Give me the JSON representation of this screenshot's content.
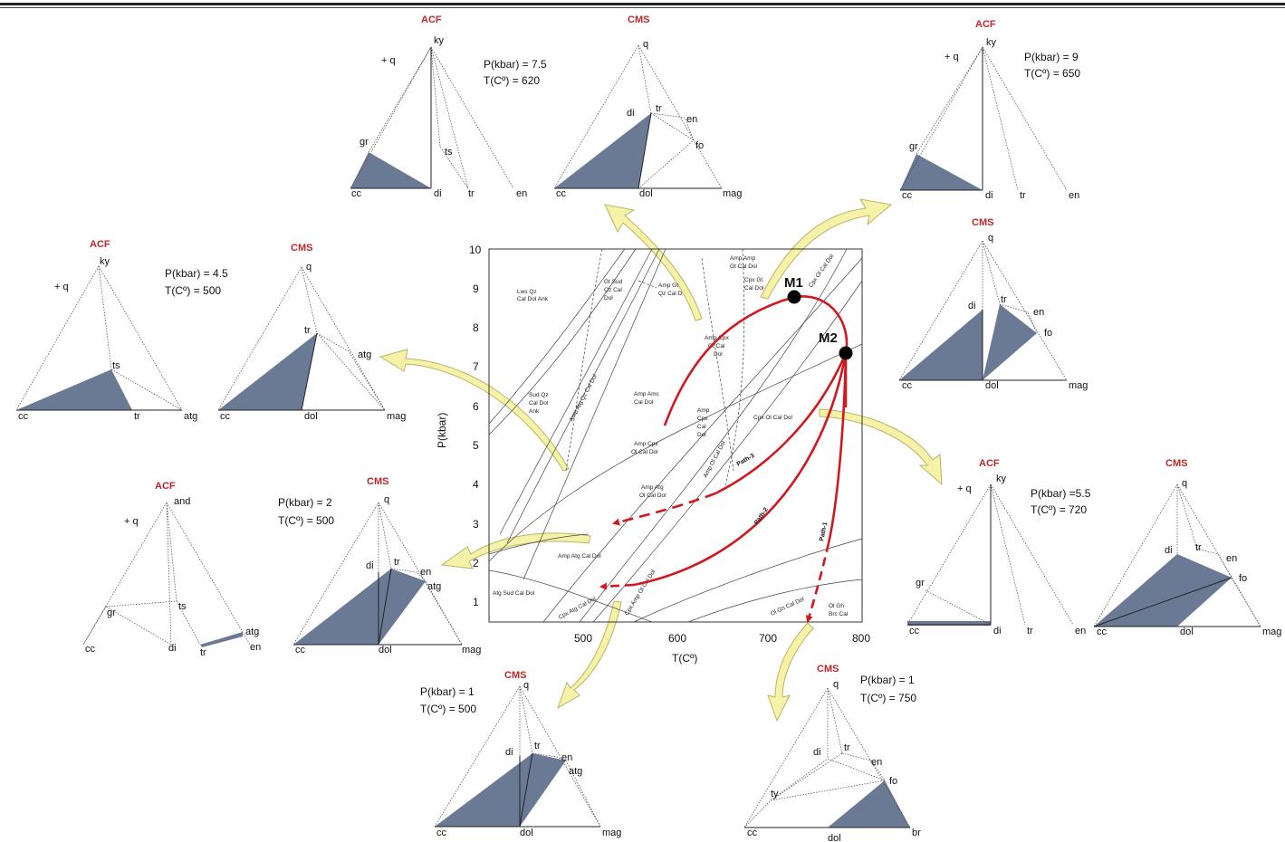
{
  "colors": {
    "fill": "#6b7a94",
    "path": "#d0181f",
    "arrow": "#f6f3a8",
    "arrow_stroke": "#b9b466",
    "title": "#c0262a"
  },
  "diagrams": {
    "top_acf": {
      "title": "ACF",
      "add": "+ q",
      "labels": {
        "ky": "ky",
        "gr": "gr",
        "ts": "ts",
        "cc": "cc",
        "di": "di",
        "tr": "tr",
        "en": "en"
      },
      "note1": "P(kbar) = 7.5",
      "note2": "T(Cº) = 620"
    },
    "top_cms": {
      "title": "CMS",
      "labels": {
        "q": "q",
        "di": "di",
        "tr": "tr",
        "en": "en",
        "fo": "fo",
        "cc": "cc",
        "dol": "dol",
        "mag": "mag"
      }
    },
    "right_acf": {
      "title": "ACF",
      "add": "+ q",
      "labels": {
        "ky": "ky",
        "gr": "gr",
        "cc": "cc",
        "di": "di",
        "tr": "tr",
        "en": "en"
      },
      "note1": "P(kbar) = 9",
      "note2": "T(Cº) = 650"
    },
    "right_cms": {
      "title": "CMS",
      "labels": {
        "q": "q",
        "di": "di",
        "tr": "tr",
        "en": "en",
        "fo": "fo",
        "cc": "cc",
        "dol": "dol",
        "mag": "mag"
      }
    },
    "left_acf": {
      "title": "ACF",
      "add": "+ q",
      "labels": {
        "ky": "ky",
        "ts": "ts",
        "cc": "cc",
        "tr": "tr",
        "atg": "atg"
      },
      "note1": "P(kbar) = 4.5",
      "note2": "T(Cº) = 500"
    },
    "left_cms": {
      "title": "CMS",
      "labels": {
        "q": "q",
        "tr": "tr",
        "atg": "atg",
        "cc": "cc",
        "dol": "dol",
        "mag": "mag"
      }
    },
    "lowleft_acf": {
      "title": "ACF",
      "add": "+ q",
      "labels": {
        "and": "and",
        "gr": "gr",
        "ts": "ts",
        "cc": "cc",
        "di": "di",
        "tr": "tr",
        "atg": "atg",
        "en": "en"
      }
    },
    "lowleft_cms": {
      "title": "CMS",
      "labels": {
        "q": "q",
        "di": "di",
        "tr": "tr",
        "en": "en",
        "atg": "atg",
        "cc": "cc",
        "dol": "dol",
        "mag": "mag"
      },
      "note1": "P(kbar) = 2",
      "note2": "T(Cº) = 500"
    },
    "midright_acf": {
      "title": "ACF",
      "add": "+ q",
      "labels": {
        "ky": "ky",
        "gr": "gr",
        "cc": "cc",
        "di": "di",
        "tr": "tr",
        "en": "en"
      },
      "note1": "P(kbar) =5.5",
      "note2": "T(Cº) = 720"
    },
    "midright_cms": {
      "title": "CMS",
      "labels": {
        "q": "q",
        "di": "di",
        "tr": "tr",
        "en": "en",
        "fo": "fo",
        "cc": "cc",
        "dol": "dol",
        "mag": "mag"
      }
    },
    "bottom_cms": {
      "title": "CMS",
      "labels": {
        "q": "q",
        "di": "di",
        "tr": "tr",
        "en": "en",
        "atg": "atg",
        "cc": "cc",
        "dol": "dol",
        "mag": "mag"
      },
      "note1": "P(kbar) = 1",
      "note2": "T(Cº) = 500"
    },
    "bottomright_cms": {
      "title": "CMS",
      "labels": {
        "q": "q",
        "di": "di",
        "tr": "tr",
        "en": "en",
        "fo": "fo",
        "ty": "ty",
        "cc": "cc",
        "dol": "dol",
        "br": "br"
      },
      "note1": "P(kbar) = 1",
      "note2": "T(Cº) = 750"
    }
  },
  "chart_data": {
    "type": "line",
    "xlabel": "T(Cº)",
    "ylabel": "P(kbar)",
    "xlim": [
      400,
      800
    ],
    "ylim": [
      0.5,
      10
    ],
    "xticks": [
      "500",
      "600",
      "700",
      "800"
    ],
    "yticks": [
      "1",
      "2",
      "3",
      "4",
      "5",
      "6",
      "7",
      "8",
      "9",
      "10"
    ],
    "points": [
      {
        "name": "M1",
        "x": 727,
        "y": 8.75
      },
      {
        "name": "M2",
        "x": 782,
        "y": 7.35
      }
    ],
    "path_labels": [
      "Path-1",
      "Path-2",
      "Path-3"
    ],
    "field_labels": {
      "lws": [
        "Lws Qz",
        "Cal Dol Ank"
      ],
      "gt_sud": [
        "Gt Sud",
        "Qz Cal",
        "Dol"
      ],
      "amp_gt_top": [
        "Amp Gt",
        "Qz Cal D"
      ],
      "amp_amp": [
        "Amp Amp",
        "Gt Cal Dol"
      ],
      "cpx_gt": [
        "Cpx Gt",
        "Cal Dol"
      ],
      "cpx_ol_top": [
        "Cpx Ol Cal Dol"
      ],
      "amp_cpx_gt": [
        "Amp Cpx",
        "Gt Cal",
        "Dol"
      ],
      "sud_qz": [
        "Sud Qz",
        "Cal Dol",
        "Ank"
      ],
      "amp_atg_diag": [
        "Amp Atg Qz Cal Dol"
      ],
      "amp_amc": [
        "Amp Amc",
        "Cal Dol"
      ],
      "amp_cpx_col": [
        "Amp",
        "Cpx",
        "Cal",
        "Dol"
      ],
      "amp_cpx_ol": [
        "Amp Cpx",
        "Ol Cal Dol"
      ],
      "amp_ol_diag": [
        "Amp Ol Cal Dol"
      ],
      "cpx_ol_cal": [
        "Cpx Ol Cal Dol"
      ],
      "amp_atg_ol": [
        "Amp Atg",
        "Ol Cal Dol"
      ],
      "amp_atg_cal": [
        "Amp Atg Cal Dol"
      ],
      "atg_sud": [
        "Atg Sud Cal Dol"
      ],
      "cpx_atg_diag": [
        "Cpx Atg Cal Dol"
      ],
      "cpx_amp_diag": [
        "Cpx Amp Ol Cal Dol"
      ],
      "ol_gh": [
        "Ol Gh Cal Dol"
      ],
      "ol_gh_brc": [
        "Ol Gh",
        "Brc Cal"
      ]
    }
  }
}
